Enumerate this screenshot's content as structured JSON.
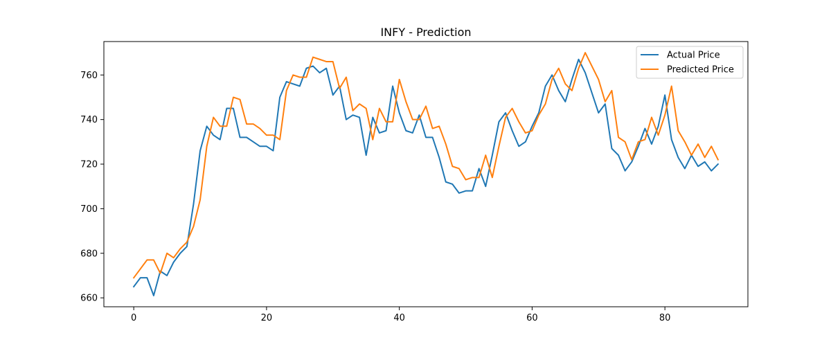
{
  "chart_data": {
    "type": "line",
    "title": "INFY - Prediction",
    "xlabel": "",
    "ylabel": "",
    "xlim": [
      -4.5,
      92.5
    ],
    "ylim": [
      656,
      775
    ],
    "xticks": [
      0,
      20,
      40,
      60,
      80
    ],
    "yticks": [
      660,
      680,
      700,
      720,
      740,
      760
    ],
    "grid": false,
    "legend_position": "top-right",
    "series": [
      {
        "name": "Actual Price",
        "color": "#1f77b4",
        "values": [
          665,
          669,
          669,
          661,
          672,
          670,
          676,
          680,
          683,
          702,
          726,
          737,
          733,
          731,
          745,
          745,
          732,
          732,
          730,
          728,
          728,
          726,
          750,
          757,
          756,
          755,
          763,
          764,
          761,
          763,
          751,
          755,
          740,
          742,
          741,
          724,
          741,
          734,
          735,
          755,
          743,
          735,
          734,
          742,
          732,
          732,
          723,
          712,
          711,
          707,
          708,
          708,
          718,
          710,
          724,
          739,
          743,
          735,
          728,
          730,
          737,
          743,
          755,
          760,
          753,
          748,
          758,
          767,
          761,
          752,
          743,
          747,
          727,
          724,
          717,
          721,
          728,
          736,
          729,
          737,
          751,
          731,
          723,
          718,
          724,
          719,
          721,
          717,
          720
        ]
      },
      {
        "name": "Predicted Price",
        "color": "#ff7f0e",
        "values": [
          669,
          673,
          677,
          677,
          671,
          680,
          678,
          682,
          685,
          692,
          704,
          728,
          741,
          737,
          737,
          750,
          749,
          738,
          738,
          736,
          733,
          733,
          731,
          753,
          760,
          759,
          759,
          768,
          767,
          766,
          766,
          754,
          759,
          744,
          747,
          745,
          731,
          745,
          739,
          739,
          758,
          748,
          740,
          740,
          746,
          736,
          737,
          729,
          719,
          718,
          713,
          714,
          714,
          724,
          714,
          728,
          741,
          745,
          739,
          734,
          735,
          742,
          747,
          758,
          763,
          756,
          753,
          763,
          770,
          764,
          758,
          748,
          753,
          732,
          730,
          722,
          730,
          731,
          741,
          733,
          742,
          755,
          735,
          730,
          724,
          729,
          723,
          728,
          722
        ]
      }
    ]
  }
}
